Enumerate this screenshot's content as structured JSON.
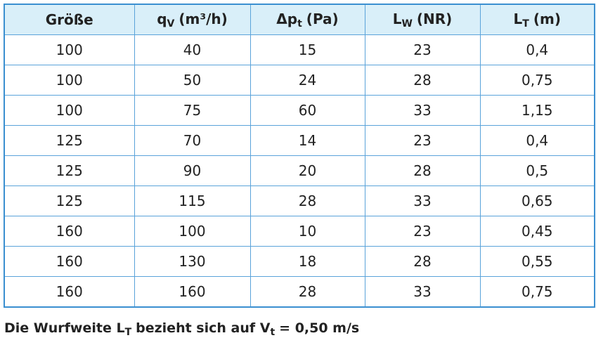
{
  "table": {
    "header": [
      {
        "main": "Größe"
      },
      {
        "main": "q",
        "sub": "V",
        "rest": "(m³/h)"
      },
      {
        "main": "Δp",
        "sub": "t",
        "rest": "(Pa)"
      },
      {
        "main": "L",
        "sub": "W",
        "rest": "(NR)"
      },
      {
        "main": "L",
        "sub": "T",
        "rest": "(m)"
      }
    ],
    "rows": [
      [
        "100",
        "40",
        "15",
        "23",
        "0,4"
      ],
      [
        "100",
        "50",
        "24",
        "28",
        "0,75"
      ],
      [
        "100",
        "75",
        "60",
        "33",
        "1,15"
      ],
      [
        "125",
        "70",
        "14",
        "23",
        "0,4"
      ],
      [
        "125",
        "90",
        "20",
        "28",
        "0,5"
      ],
      [
        "125",
        "115",
        "28",
        "33",
        "0,65"
      ],
      [
        "160",
        "100",
        "10",
        "23",
        "0,45"
      ],
      [
        "160",
        "130",
        "18",
        "28",
        "0,55"
      ],
      [
        "160",
        "160",
        "28",
        "33",
        "0,75"
      ]
    ]
  },
  "footnote": [
    "Die Wurfweite L",
    "T",
    "bezieht sich auf V",
    "t",
    "= 0,50 m/s"
  ]
}
